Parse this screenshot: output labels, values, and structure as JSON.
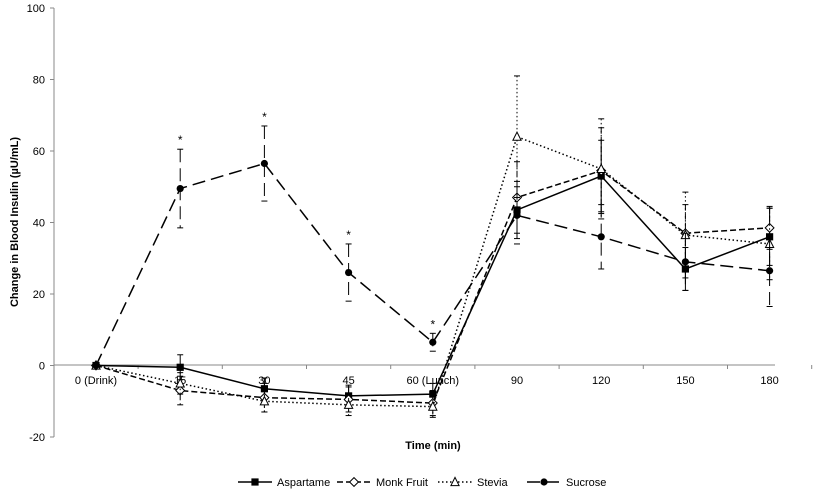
{
  "chart_data": {
    "type": "line",
    "title": "",
    "xlabel": "Time (min)",
    "ylabel": "Change in Blood Insulin (µU/mL)",
    "categories": [
      "0 (Drink)",
      "15",
      "30",
      "45",
      "60 (Lunch)",
      "90",
      "120",
      "150",
      "180"
    ],
    "ylim": [
      -20,
      100
    ],
    "yticks": [
      -20,
      0,
      20,
      40,
      60,
      80,
      100
    ],
    "grid": false,
    "legend_position": "bottom",
    "significance_marker": "*",
    "significance_indices": [
      1,
      2,
      3,
      4
    ],
    "series": [
      {
        "name": "Aspartame",
        "marker": "square",
        "line_style": "solid",
        "values": [
          0,
          -0.5,
          -6.5,
          -8.5,
          -8,
          43.5,
          53,
          27,
          36
        ],
        "errors": [
          0,
          3.5,
          3,
          3,
          3,
          8,
          10,
          6,
          8
        ]
      },
      {
        "name": "Monk Fruit",
        "marker": "diamond",
        "line_style": "dashed",
        "values": [
          0,
          -7,
          -9,
          -9.5,
          -10.5,
          47,
          54.5,
          37,
          38.5
        ],
        "errors": [
          0,
          4,
          4,
          3.5,
          3.5,
          10,
          12,
          8,
          6
        ]
      },
      {
        "name": "Stevia",
        "marker": "triangle",
        "line_style": "dotted",
        "values": [
          0,
          -5,
          -10,
          -11,
          -11.5,
          64,
          55,
          36.5,
          34
        ],
        "errors": [
          0,
          3,
          3,
          3,
          3,
          17,
          14,
          12,
          10
        ]
      },
      {
        "name": "Sucrose",
        "marker": "circle",
        "line_style": "long-dash",
        "values": [
          0,
          49.5,
          56.5,
          26,
          6.5,
          42,
          36,
          29,
          26.5
        ],
        "errors": [
          0,
          11,
          10.5,
          8,
          2.5,
          8,
          9,
          8,
          10
        ]
      }
    ]
  }
}
